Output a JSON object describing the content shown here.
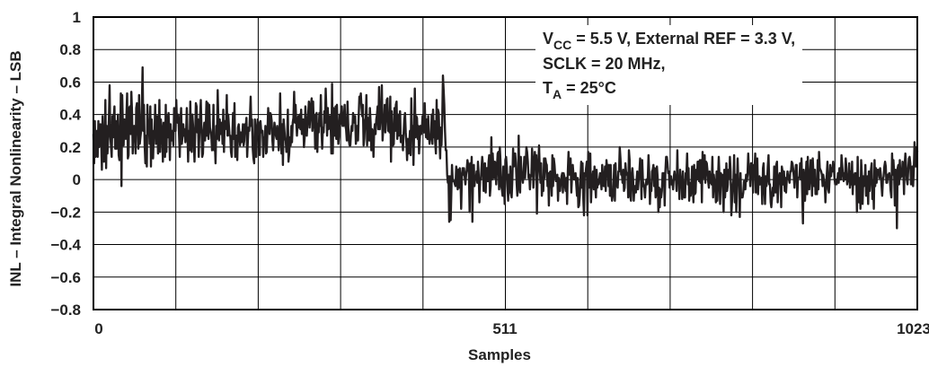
{
  "chart_data": {
    "type": "line",
    "xlabel": "Samples",
    "ylabel": "INL – Integral Nonlinearity – LSB",
    "xlim": [
      0,
      1023
    ],
    "ylim": [
      -0.8,
      1
    ],
    "x_ticks": [
      "0",
      "511",
      "1023"
    ],
    "y_ticks": [
      "1",
      "0.8",
      "0.6",
      "0.4",
      "0.2",
      "0",
      "−0.2",
      "−0.4",
      "−0.6",
      "−0.8"
    ],
    "annotation": {
      "line1_pre": "V",
      "line1_sub": "CC",
      "line1_post": " = 5.5 V, External REF = 3.3 V,",
      "line2": "SCLK = 20 MHz,",
      "line3_pre": "T",
      "line3_sub": "A",
      "line3_post": " = 25°C"
    },
    "grid": true,
    "series": [
      {
        "values": [
          0.28,
          0.1,
          0.36,
          0.14,
          0.2,
          0.3,
          0.14,
          0.36,
          0.2,
          0.23,
          0.34,
          0.26,
          0.06,
          0.39,
          0.24,
          0.11,
          0.2,
          0.49,
          0.07,
          0.33,
          0.16,
          0.25,
          0.37,
          0.58,
          0.28,
          0.21,
          0.14,
          0.39,
          0.26,
          0.39,
          0.45,
          0.19,
          0.36,
          0.19,
          0.29,
          0.4,
          0.15,
          0.12,
          0.25,
          0.53,
          -0.04,
          0.52,
          0.33,
          0.21,
          0.37,
          0.29,
          0.25,
          0.39,
          0.53,
          0.13,
          0.15,
          0.44,
          0.45,
          0.28,
          0.54,
          0.41,
          0.16,
          0.31,
          0.33,
          0.3,
          0.16,
          0.44,
          0.47,
          0.36,
          0.19,
          0.52,
          0.22,
          0.26,
          0.3,
          0.46,
          0.69,
          0.3,
          0.46,
          0.21,
          0.1,
          0.27,
          0.08,
          0.46,
          0.31,
          0.35,
          0.22,
          0.45,
          0.08,
          0.37,
          0.23,
          0.13,
          0.3,
          0.27,
          0.46,
          0.22,
          0.27,
          0.39,
          0.16,
          0.21,
          0.49,
          0.17,
          0.37,
          0.32,
          0.29,
          0.11,
          0.35,
          0.31,
          0.14,
          0.46,
          0.17,
          0.39,
          0.26,
          0.41,
          0.28,
          0.12,
          0.34,
          0.24,
          0.3,
          0.26,
          0.21,
          0.44,
          0.3,
          0.3,
          0.49,
          0.36,
          0.35,
          0.4,
          0.27,
          0.14,
          0.37,
          0.44,
          0.22,
          0.27,
          0.34,
          0.27,
          0.31,
          0.23,
          0.28,
          0.44,
          0.27,
          0.11,
          0.3,
          0.18,
          0.48,
          0.25,
          0.17,
          0.4,
          0.33,
          0.23,
          0.11,
          0.29,
          0.47,
          0.45,
          0.29,
          0.37,
          0.14,
          0.28,
          0.39,
          0.49,
          0.3,
          0.14,
          0.16,
          0.3,
          0.35,
          0.24,
          0.32,
          0.48,
          0.27,
          0.47,
          0.25,
          0.46,
          0.32,
          0.3,
          0.27,
          0.18,
          0.22,
          0.46,
          0.18,
          0.23,
          0.1,
          0.33,
          0.25,
          0.55,
          0.38,
          0.24,
          0.37,
          0.28,
          0.32,
          0.35,
          0.22,
          0.43,
          0.17,
          0.36,
          0.31,
          0.33,
          0.52,
          0.27,
          0.4,
          0.33,
          0.27,
          0.27,
          0.17,
          0.14,
          0.29,
          0.41,
          0.25,
          0.47,
          0.14,
          0.24,
          0.27,
          0.12,
          0.32,
          0.34,
          0.28,
          0.21,
          0.29,
          0.23,
          0.26,
          0.34,
          0.21,
          0.24,
          0.34,
          0.32,
          0.38,
          0.14,
          0.23,
          0.32,
          0.3,
          0.39,
          0.51,
          0.33,
          0.37,
          0.19,
          0.13,
          0.1,
          0.37,
          0.31,
          0.14,
          0.28,
          0.37,
          0.28,
          0.35,
          0.15,
          0.36,
          0.3,
          0.29,
          0.3,
          0.14,
          0.26,
          0.22,
          0.33,
          0.16,
          0.17,
          0.3,
          0.44,
          0.36,
          0.28,
          0.41,
          0.4,
          0.36,
          0.24,
          0.18,
          0.28,
          0.35,
          0.31,
          0.27,
          0.25,
          0.33,
          0.28,
          0.18,
          0.25,
          0.53,
          0.29,
          0.16,
          0.34,
          0.09,
          0.37,
          0.31,
          0.25,
          0.24,
          0.17,
          0.26,
          0.43,
          0.11,
          0.16,
          0.26,
          0.21,
          0.33,
          0.23,
          0.35,
          0.38,
          0.54,
          0.35,
          0.46,
          0.36,
          0.27,
          0.34,
          0.39,
          0.32,
          0.4,
          0.31,
          0.43,
          0.28,
          0.33,
          0.37,
          0.2,
          0.26,
          0.45,
          0.34,
          0.27,
          0.35,
          0.4,
          0.48,
          0.32,
          0.4,
          0.46,
          0.5,
          0.3,
          0.48,
          0.32,
          0.4,
          0.19,
          0.39,
          0.41,
          0.17,
          0.34,
          0.29,
          0.41,
          0.33,
          0.52,
          0.29,
          0.19,
          0.32,
          0.29,
          0.42,
          0.35,
          0.56,
          0.42,
          0.27,
          0.44,
          0.31,
          0.32,
          0.39,
          0.36,
          0.16,
          0.59,
          0.16,
          0.44,
          0.41,
          0.27,
          0.45,
          0.25,
          0.46,
          0.32,
          0.22,
          0.27,
          0.4,
          0.34,
          0.43,
          0.45,
          0.33,
          0.33,
          0.38,
          0.46,
          0.33,
          0.31,
          0.24,
          0.48,
          0.35,
          0.24,
          0.21,
          0.21,
          0.29,
          0.33,
          0.3,
          0.41,
          0.36,
          0.35,
          0.39,
          0.22,
          0.26,
          0.33,
          0.24,
          0.4,
          0.51,
          0.49,
          0.53,
          0.44,
          0.39,
          0.46,
          0.21,
          0.25,
          0.36,
          0.38,
          0.52,
          0.21,
          0.38,
          0.28,
          0.24,
          0.44,
          0.35,
          0.18,
          0.31,
          0.28,
          0.14,
          0.29,
          0.34,
          0.28,
          0.37,
          0.4,
          0.45,
          0.31,
          0.57,
          0.31,
          0.38,
          0.39,
          0.58,
          0.24,
          0.32,
          0.34,
          0.46,
          0.29,
          0.38,
          0.49,
          0.5,
          0.3,
          0.33,
          0.29,
          0.51,
          0.11,
          0.42,
          0.27,
          0.21,
          0.22,
          0.44,
          0.3,
          0.46,
          0.48,
          0.25,
          0.4,
          0.27,
          0.37,
          0.42,
          0.23,
          0.26,
          0.27,
          0.18,
          0.28,
          0.37,
          0.41,
          0.29,
          0.22,
          0.12,
          0.25,
          0.16,
          0.22,
          0.3,
          0.15,
          0.5,
          0.26,
          0.33,
          0.09,
          0.32,
          0.56,
          0.26,
          0.39,
          0.38,
          0.25,
          0.33,
          0.16,
          0.25,
          0.33,
          0.28,
          0.31,
          0.39,
          0.3,
          0.29,
          0.47,
          0.34,
          0.26,
          0.37,
          0.25,
          0.39,
          0.28,
          0.22,
          0.25,
          0.26,
          0.4,
          0.22,
          0.43,
          0.26,
          0.36,
          0.23,
          0.16,
          0.49,
          0.25,
          0.43,
          0.41,
          0.25,
          0.13,
          0.32,
          0.21,
          0.36,
          0.64,
          0.55,
          0.46,
          0.3,
          0.18,
          0.18,
          0.03,
          -0.02,
          0.02,
          -0.26,
          0.02,
          -0.25,
          -0.07,
          0.09,
          -0.01,
          -0.01,
          -0.01,
          -0.03,
          -0.04,
          0.08,
          0.05,
          -0.06,
          0.06,
          -0.05,
          0.07,
          0.01,
          -0.18,
          0.01,
          0.07,
          0.03,
          0.07,
          0.02,
          -0.03,
          0.03,
          0.06,
          0.12,
          0.09,
          0.04,
          -0.2,
          0.1,
          0.0,
          0.14,
          -0.26,
          0.07,
          0.09,
          -0.04,
          0.01,
          0.0,
          0.05,
          -0.02,
          0.11,
          0.03,
          -0.14,
          0.0,
          0.0,
          0.07,
          0.14,
          0.09,
          -0.07,
          0.05,
          0.1,
          -0.08,
          0.07,
          0.07,
          -0.01,
          0.11,
          0.15,
          -0.1,
          -0.04,
          0.26,
          0.0,
          0.16,
          0.05,
          0.01,
          0.11,
          0.1,
          -0.03,
          0.07,
          0.16,
          0.17,
          -0.06,
          0.2,
          0.12,
          -0.04,
          -0.06,
          -0.1,
          0.08,
          0.0,
          -0.15,
          0.12,
          0.14,
          0.08,
          -0.04,
          -0.13,
          0.03,
          -0.08,
          0.08,
          -0.09,
          -0.11,
          0.0,
          0.19,
          0.08,
          0.1,
          0.16,
          0.1,
          -0.02,
          -0.1,
          -0.04,
          0.27,
          -0.01,
          -0.08,
          0.14,
          0.03,
          0.02,
          -0.02,
          0.05,
          0.14,
          0.01,
          0.1,
          0.2,
          0.17,
          0.11,
          0.01,
          0.03,
          -0.06,
          0.02,
          0.02,
          0.19,
          0.12,
          -0.05,
          0.03,
          0.17,
          0.07,
          0.15,
          -0.21,
          0.05,
          0.1,
          0.21,
          0.05,
          -0.02,
          0.1,
          -0.1,
          -0.03,
          -0.07,
          0.13,
          0.01,
          0.13,
          0.1,
          0.09,
          -0.04,
          0.04,
          -0.16,
          0.04,
          0.05,
          0.02,
          -0.1,
          0.15,
          -0.04,
          0.13,
          0.09,
          0.02,
          -0.01,
          0.0,
          0.03,
          -0.13,
          0.01,
          -0.03,
          -0.07,
          -0.01,
          0.02,
          0.04,
          -0.08,
          0.04,
          0.02,
          -0.04,
          -0.07,
          0.01,
          -0.15,
          0.05,
          0.17,
          0.03,
          0.11,
          0.13,
          -0.08,
          0.02,
          0.09,
          0.03,
          -0.0,
          -0.0,
          0.04,
          -0.03,
          -0.1,
          0.01,
          -0.17,
          -0.16,
          -0.1,
          0.01,
          0.11,
          -0.05,
          0.1,
          -0.11,
          -0.22,
          0.04,
          0.02,
          0.07,
          0.11,
          -0.22,
          0.17,
          -0.05,
          0.11,
          0.16,
          -0.14,
          -0.02,
          0.02,
          0.05,
          -0.06,
          0.08,
          -0.04,
          -0.11,
          0.06,
          -0.05,
          -0.0,
          -0.03,
          0.01,
          0.04,
          0.0,
          -0.06,
          0.09,
          0.02,
          -0.04,
          -0.04,
          0.08,
          -0.07,
          0.12,
          0.07,
          0.09,
          -0.04,
          0.09,
          -0.1,
          0.09,
          -0.06,
          -0.13,
          -0.1,
          -0.05,
          0.09,
          -0.13,
          0.1,
          -0.04,
          -0.03,
          -0.05,
          0.05,
          0.05,
          0.2,
          0.13,
          0.03,
          0.04,
          -0.02,
          0.06,
          -0.07,
          -0.05,
          0.1,
          0.05,
          0.03,
          0.04,
          -0.11,
          0.18,
          0.12,
          -0.1,
          -0.13,
          0.02,
          0.07,
          0.0,
          -0.13,
          -0.04,
          -0.04,
          -0.08,
          0.0,
          0.05,
          -0.06,
          -0.0,
          0.05,
          0.13,
          0.04,
          -0.12,
          0.12,
          -0.01,
          -0.04,
          -0.05,
          -0.11,
          -0.03,
          0.0,
          -0.03,
          0.02,
          0.15,
          0.04,
          -0.15,
          -0.04,
          -0.07,
          0.05,
          0.06,
          0.09,
          -0.04,
          0.07,
          -0.11,
          -0.09,
          0.08,
          0.01,
          -0.2,
          -0.05,
          -0.17,
          -0.06,
          -0.11,
          -0.07,
          0.04,
          -0.03,
          0.04,
          -0.16,
          0.05,
          0.14,
          0.14,
          0.1,
          0.04,
          0.05,
          -0.05,
          0.02,
          0.02,
          -0.03,
          -0.01,
          -0.06,
          0.02,
          0.05,
          0.0,
          0.01,
          -0.07,
          0.18,
          -0.02,
          0.02,
          -0.12,
          0.06,
          -0.0,
          -0.0,
          -0.12,
          0.05,
          -0.06,
          -0.11,
          -0.11,
          0.04,
          0.03,
          0.16,
          -0.03,
          0.07,
          -0.13,
          -0.02,
          -0.1,
          -0.06,
          0.08,
          -0.06,
          -0.14,
          0.09,
          -0.09,
          -0.08,
          0.06,
          -0.0,
          0.11,
          0.11,
          -0.01,
          0.12,
          -0.02,
          0.12,
          -0.14,
          0.17,
          0.05,
          0.01,
          0.15,
          -0.02,
          0.11,
          0.1,
          0.05,
          -0.01,
          -0.05,
          0.05,
          -0.02,
          0.01,
          -0.03,
          0.14,
          -0.11,
          0.03,
          -0.02,
          -0.03,
          -0.14,
          0.05,
          -0.13,
          0.01,
          0.14,
          0.03,
          -0.15,
          0.04,
          -0.03,
          0.03,
          -0.07,
          -0.2,
          0.06,
          -0.11,
          -0.01,
          0.1,
          -0.07,
          -0.03,
          0.06,
          0.01,
          0.14,
          0.05,
          -0.22,
          -0.13,
          -0.04,
          0.0,
          0.15,
          -0.14,
          0.03,
          -0.2,
          -0.02,
          0.13,
          -0.02,
          -0.03,
          -0.23,
          0.04,
          -0.11,
          -0.11,
          -0.11,
          -0.08,
          -0.01,
          -0.01,
          -0.06,
          0.03,
          -0.01,
          0.03,
          0.16,
          0.07,
          0.06,
          -0.04,
          0.1,
          0.1,
          0.08,
          -0.08,
          0.09,
          0.06,
          0.16,
          -0.08,
          0.11,
          0.13,
          -0.09,
          0.01,
          0.02,
          -0.03,
          -0.0,
          0.01,
          -0.15,
          0.07,
          0.1,
          -0.05,
          -0.15,
          0.02,
          -0.04,
          -0.01,
          0.08,
          0.15,
          -0.03,
          -0.03,
          -0.14,
          -0.17,
          -0.11,
          -0.05,
          -0.1,
          0.08,
          0.04,
          -0.08,
          0.09,
          0.11,
          -0.14,
          -0.04,
          0.02,
          0.04,
          0.01,
          -0.17,
          0.08,
          0.05,
          -0.03,
          0.05,
          -0.07,
          0.01,
          -0.08,
          -0.0,
          0.05,
          0.01,
          0.0,
          -0.02,
          0.05,
          0.05,
          0.11,
          0.1,
          0.07,
          0.02,
          -0.05,
          0.03,
          0.09,
          0.09,
          -0.11,
          0.01,
          0.01,
          0.02,
          0.1,
          -0.0,
          0.13,
          -0.08,
          -0.27,
          0.06,
          -0.02,
          -0.13,
          0.02,
          0.11,
          -0.09,
          0.14,
          -0.03,
          -0.06,
          0.01,
          0.12,
          0.11,
          -0.1,
          0.13,
          0.04,
          -0.04,
          0.06,
          -0.09,
          -0.05,
          -0.09,
          0.12,
          -0.06,
          0.17,
          0.07,
          0.06,
          0.05,
          0.03,
          -0.04,
          0.03,
          -0.01,
          -0.02,
          -0.14,
          -0.02,
          0.03,
          0.11,
          -0.06,
          -0.08,
          -0.0,
          0.09,
          0.02,
          0.07,
          0.05,
          0.11,
          0.08,
          0.01,
          -0.03,
          -0.0,
          -0.03,
          -0.01,
          0.04,
          -0.02,
          0.07,
          0.05,
          -0.0,
          0.15,
          0.09,
          0.03,
          -0.01,
          0.04,
          0.0,
          0.13,
          0.07,
          -0.03,
          0.0,
          -0.01,
          0.1,
          -0.05,
          0.05,
          -0.03,
          0.11,
          -0.09,
          0.03,
          -0.03,
          0.04,
          -0.03,
          0.04,
          -0.2,
          0.14,
          -0.06,
          -0.14,
          0.01,
          -0.18,
          0.12,
          0.02,
          -0.15,
          0.02,
          -0.04,
          -0.03,
          0.09,
          -0.1,
          -0.0,
          0.02,
          -0.15,
          0.05,
          -0.07,
          0.01,
          0.06,
          0.1,
          -0.12,
          -0.01,
          -0.18,
          0.12,
          -0.04,
          0.07,
          -0.02,
          0.06,
          0.05,
          0.06,
          0.01,
          0.07,
          0.03,
          -0.04,
          -0.1,
          0.0,
          0.02,
          0.08,
          0.11,
          0.08,
          -0.02,
          -0.02,
          0.03,
          0.03,
          0.04,
          -0.0,
          -0.07,
          -0.11,
          0.16,
          0.03,
          0.12,
          0.04,
          -0.16,
          0.06,
          0.0,
          -0.3,
          0.07,
          0.09,
          -0.03,
          0.12,
          0.01,
          0.03,
          0.02,
          0.11,
          0.06,
          -0.09,
          0.09,
          0.16,
          0.08,
          0.0,
          -0.03,
          0.05,
          0.13,
          0.14,
          0.1,
          -0.03,
          0.04,
          0.08,
          -0.04,
          0.06,
          0.23,
          0.12,
          0.08,
          0.2,
          0.17
        ]
      }
    ]
  }
}
